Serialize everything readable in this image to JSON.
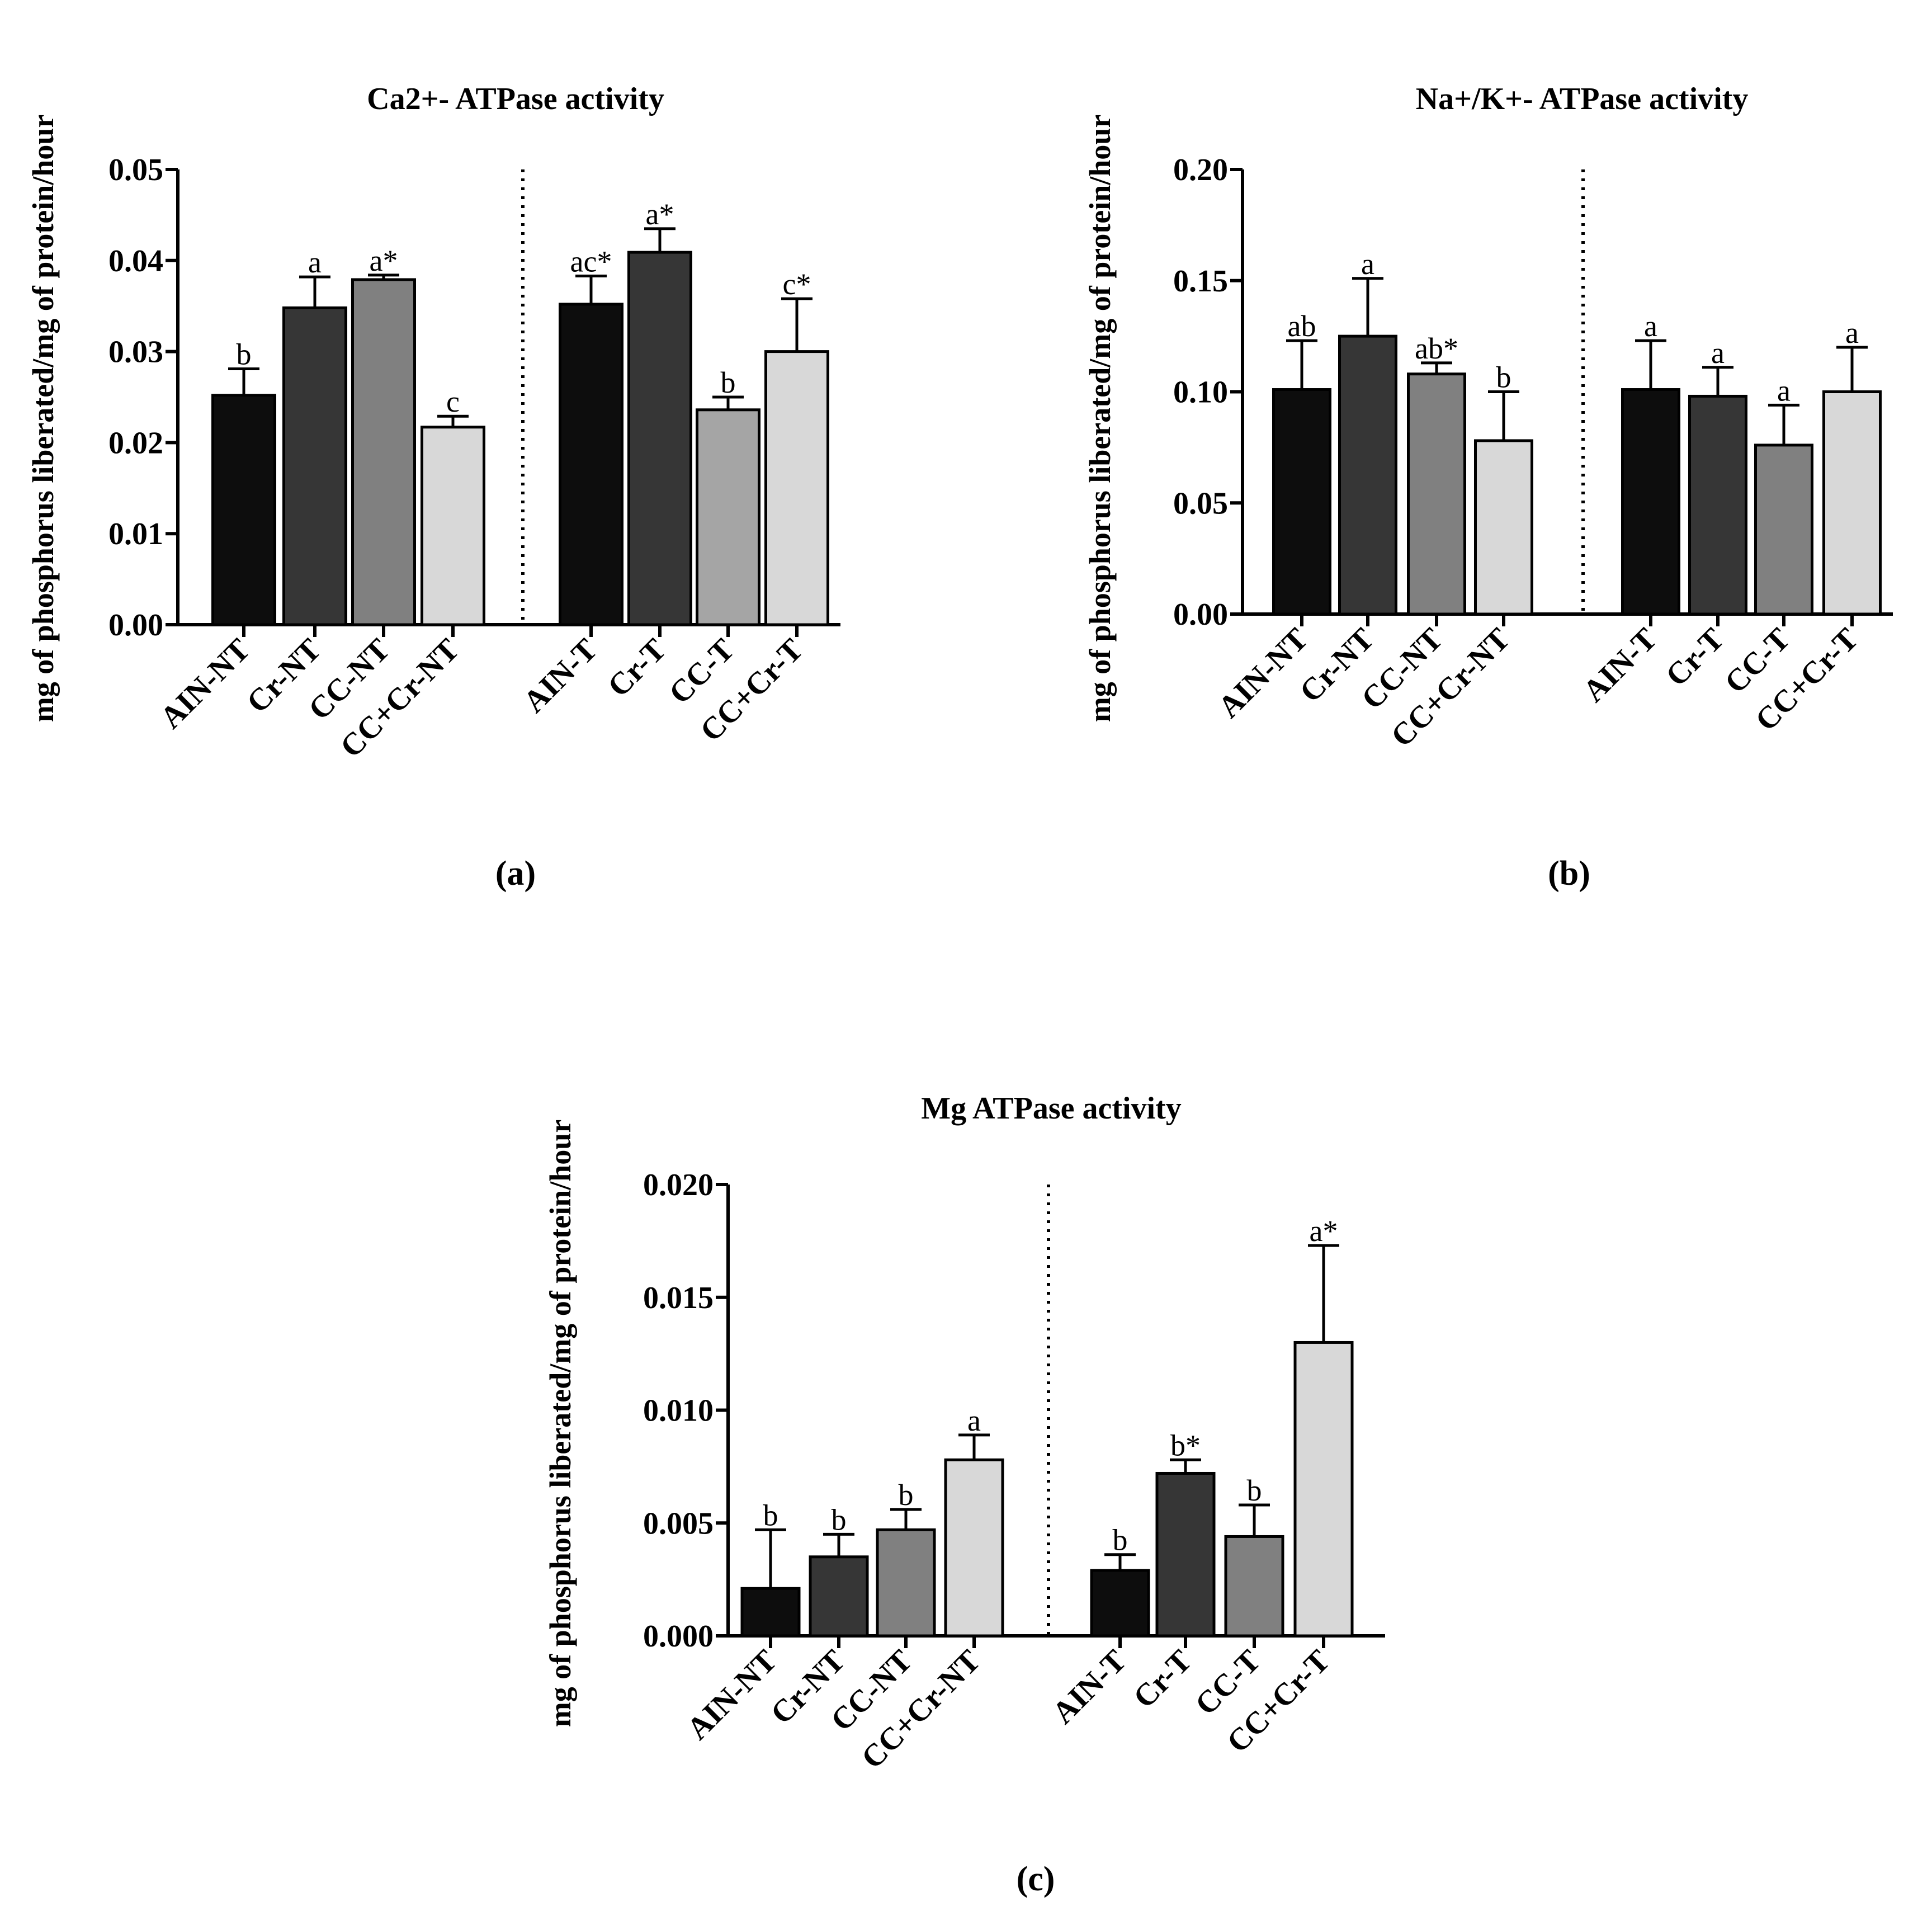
{
  "chart_data": [
    {
      "type": "bar",
      "id": "a",
      "title": "Ca2+- ATPase activity",
      "ylabel": "mg of phosphorus liberated/mg of protein/hour",
      "panel_label": "(a)",
      "ylim": [
        0,
        0.05
      ],
      "yticks": [
        "0.00",
        "0.01",
        "0.02",
        "0.03",
        "0.04",
        "0.05"
      ],
      "categories": [
        "AIN-NT",
        "Cr-NT",
        "CC-NT",
        "CC+Cr-NT",
        "AIN-T",
        "Cr-T",
        "CC-T",
        "CC+Cr-T"
      ],
      "values": [
        0.0252,
        0.0348,
        0.0379,
        0.0217,
        0.0352,
        0.0409,
        0.0236,
        0.03
      ],
      "errors": [
        0.0029,
        0.0034,
        0.0005,
        0.0012,
        0.0031,
        0.0026,
        0.0014,
        0.0058
      ],
      "labels": [
        "b",
        "a",
        "a*",
        "c",
        "ac*",
        "a*",
        "b",
        "c*"
      ],
      "colors": [
        "#0d0d0d",
        "#363636",
        "#808080",
        "#d8d8d8",
        "#0d0d0d",
        "#363636",
        "#a5a5a5",
        "#d8d8d8"
      ]
    },
    {
      "type": "bar",
      "id": "b",
      "title": "Na+/K+- ATPase activity",
      "ylabel": "mg of phosphorus liberated/mg of protein/hour",
      "panel_label": "(b)",
      "ylim": [
        0,
        0.2
      ],
      "yticks": [
        "0.00",
        "0.05",
        "0.10",
        "0.15",
        "0.20"
      ],
      "categories": [
        "AIN-NT",
        "Cr-NT",
        "CC-NT",
        "CC+Cr-NT",
        "AIN-T",
        "Cr-T",
        "CC-T",
        "CC+Cr-T"
      ],
      "values": [
        0.101,
        0.125,
        0.108,
        0.078,
        0.101,
        0.098,
        0.076,
        0.1
      ],
      "errors": [
        0.022,
        0.026,
        0.005,
        0.022,
        0.022,
        0.013,
        0.018,
        0.02
      ],
      "labels": [
        "ab",
        "a",
        "ab*",
        "b",
        "a",
        "a",
        "a",
        "a"
      ],
      "colors": [
        "#0d0d0d",
        "#363636",
        "#808080",
        "#d8d8d8",
        "#0d0d0d",
        "#363636",
        "#808080",
        "#d8d8d8"
      ]
    },
    {
      "type": "bar",
      "id": "c",
      "title": "Mg ATPase activity",
      "ylabel": "mg of phosphorus liberated/mg of protein/hour",
      "panel_label": "(c)",
      "ylim": [
        0,
        0.02
      ],
      "yticks": [
        "0.000",
        "0.005",
        "0.010",
        "0.015",
        "0.020"
      ],
      "categories": [
        "AIN-NT",
        "Cr-NT",
        "CC-NT",
        "CC+Cr-NT",
        "AIN-T",
        "Cr-T",
        "CC-T",
        "CC+Cr-T"
      ],
      "values": [
        0.0021,
        0.0035,
        0.0047,
        0.0078,
        0.0029,
        0.0072,
        0.0044,
        0.013
      ],
      "errors": [
        0.0026,
        0.001,
        0.0009,
        0.0011,
        0.0007,
        0.0006,
        0.0014,
        0.0043
      ],
      "labels": [
        "b",
        "b",
        "b",
        "a",
        "b",
        "b*",
        "b",
        "a*"
      ],
      "colors": [
        "#0d0d0d",
        "#363636",
        "#808080",
        "#d8d8d8",
        "#0d0d0d",
        "#363636",
        "#808080",
        "#d8d8d8"
      ]
    }
  ]
}
